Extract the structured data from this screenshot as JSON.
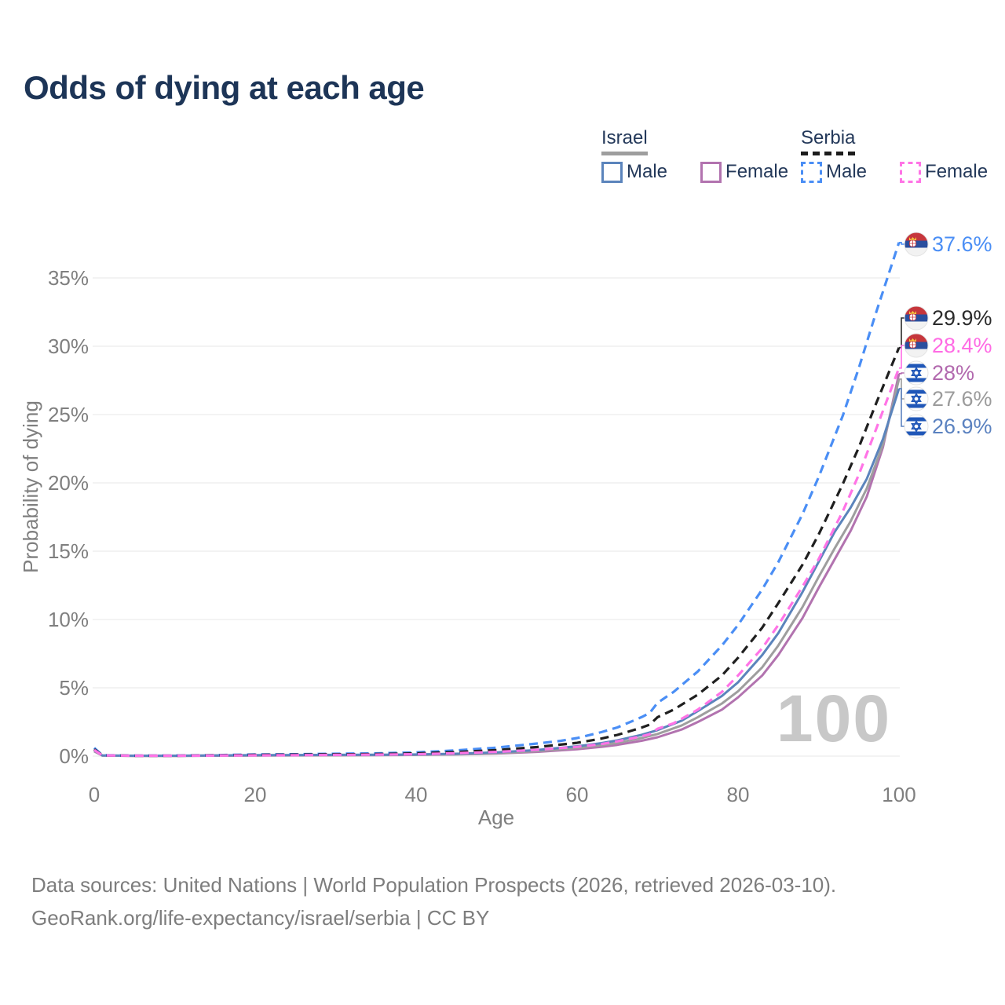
{
  "page": {
    "title": "Odds of dying at each age"
  },
  "legend": {
    "groups": [
      {
        "name": "Israel",
        "underline_style": "solid",
        "underline_color": "#9e9e9e",
        "items": [
          {
            "label": "Male",
            "color": "#5b84bc",
            "style": "solid"
          },
          {
            "label": "Female",
            "color": "#b273af",
            "style": "solid"
          }
        ]
      },
      {
        "name": "Serbia",
        "underline_style": "dashed",
        "underline_color": "#1c1c1c",
        "items": [
          {
            "label": "Male",
            "color": "#4a8ef5",
            "style": "dashed"
          },
          {
            "label": "Female",
            "color": "#ff74e6",
            "style": "dashed"
          }
        ]
      }
    ]
  },
  "footer": {
    "line1": "Data sources: United Nations | World Population Prospects (2026, retrieved 2026-03-10).",
    "line2": "GeoRank.org/life-expectancy/israel/serbia | CC BY"
  },
  "chart_data": {
    "type": "line",
    "title": "Odds of dying at each age",
    "xlabel": "Age",
    "ylabel": "Probability of dying",
    "xlim": [
      0,
      100
    ],
    "ylim_pct": [
      0,
      38
    ],
    "x_ticks": [
      0,
      20,
      40,
      60,
      80,
      100
    ],
    "x_tick_labels": [
      "0",
      "20",
      "40",
      "60",
      "80",
      "100"
    ],
    "y_ticks_pct": [
      0,
      5,
      10,
      15,
      20,
      25,
      30,
      35
    ],
    "y_tick_labels": [
      "0%",
      "5%",
      "10%",
      "15%",
      "20%",
      "25%",
      "30%",
      "35%"
    ],
    "grid": "horizontal",
    "legend_position": "top-right",
    "watermark": "100",
    "axis_text_color": "#7f7f7f",
    "grid_color": "#ececec",
    "watermark_color": "#c8c8c8",
    "series": [
      {
        "id": "israel-female",
        "name": "Israel Female",
        "country": "Israel",
        "sex": "Female",
        "style": "solid",
        "color": "#b273af",
        "points": [
          [
            0,
            0.35
          ],
          [
            1,
            0.04
          ],
          [
            5,
            0.02
          ],
          [
            10,
            0.02
          ],
          [
            15,
            0.03
          ],
          [
            20,
            0.04
          ],
          [
            25,
            0.05
          ],
          [
            30,
            0.06
          ],
          [
            35,
            0.07
          ],
          [
            40,
            0.09
          ],
          [
            45,
            0.12
          ],
          [
            50,
            0.19
          ],
          [
            55,
            0.31
          ],
          [
            60,
            0.5
          ],
          [
            63,
            0.68
          ],
          [
            65,
            0.82
          ],
          [
            68,
            1.12
          ],
          [
            70,
            1.38
          ],
          [
            73,
            1.95
          ],
          [
            75,
            2.5
          ],
          [
            78,
            3.4
          ],
          [
            80,
            4.3
          ],
          [
            83,
            5.9
          ],
          [
            85,
            7.4
          ],
          [
            88,
            10.1
          ],
          [
            90,
            12.3
          ],
          [
            92,
            14.4
          ],
          [
            94,
            16.5
          ],
          [
            96,
            19.0
          ],
          [
            98,
            22.6
          ],
          [
            100,
            28.0
          ]
        ]
      },
      {
        "id": "israel-total",
        "name": "Israel Both sexes",
        "country": "Israel",
        "sex": "Both",
        "style": "solid",
        "color": "#9e9e9e",
        "points": [
          [
            0,
            0.38
          ],
          [
            1,
            0.04
          ],
          [
            5,
            0.02
          ],
          [
            10,
            0.02
          ],
          [
            15,
            0.04
          ],
          [
            20,
            0.05
          ],
          [
            25,
            0.06
          ],
          [
            30,
            0.07
          ],
          [
            35,
            0.08
          ],
          [
            40,
            0.1
          ],
          [
            45,
            0.14
          ],
          [
            50,
            0.22
          ],
          [
            55,
            0.37
          ],
          [
            60,
            0.6
          ],
          [
            63,
            0.8
          ],
          [
            65,
            0.97
          ],
          [
            68,
            1.32
          ],
          [
            70,
            1.62
          ],
          [
            73,
            2.25
          ],
          [
            75,
            2.85
          ],
          [
            78,
            3.85
          ],
          [
            80,
            4.75
          ],
          [
            83,
            6.5
          ],
          [
            85,
            8.1
          ],
          [
            88,
            10.9
          ],
          [
            90,
            13.1
          ],
          [
            92,
            15.2
          ],
          [
            94,
            17.2
          ],
          [
            96,
            19.6
          ],
          [
            98,
            22.8
          ],
          [
            100,
            27.6
          ]
        ]
      },
      {
        "id": "israel-male",
        "name": "Israel Male",
        "country": "Israel",
        "sex": "Male",
        "style": "solid",
        "color": "#5b84bc",
        "points": [
          [
            0,
            0.42
          ],
          [
            1,
            0.05
          ],
          [
            5,
            0.03
          ],
          [
            10,
            0.03
          ],
          [
            15,
            0.05
          ],
          [
            20,
            0.07
          ],
          [
            25,
            0.08
          ],
          [
            30,
            0.09
          ],
          [
            35,
            0.1
          ],
          [
            40,
            0.12
          ],
          [
            45,
            0.17
          ],
          [
            50,
            0.27
          ],
          [
            55,
            0.44
          ],
          [
            60,
            0.72
          ],
          [
            63,
            0.95
          ],
          [
            65,
            1.15
          ],
          [
            68,
            1.55
          ],
          [
            70,
            1.9
          ],
          [
            73,
            2.6
          ],
          [
            75,
            3.3
          ],
          [
            78,
            4.4
          ],
          [
            80,
            5.4
          ],
          [
            83,
            7.4
          ],
          [
            85,
            9.0
          ],
          [
            88,
            12.0
          ],
          [
            90,
            14.2
          ],
          [
            92,
            16.4
          ],
          [
            94,
            18.2
          ],
          [
            96,
            20.3
          ],
          [
            98,
            23.2
          ],
          [
            100,
            26.9
          ]
        ]
      },
      {
        "id": "serbia-male",
        "name": "Serbia Male",
        "country": "Serbia",
        "sex": "Male",
        "style": "dashed",
        "color": "#4a8ef5",
        "points": [
          [
            0,
            0.6
          ],
          [
            1,
            0.07
          ],
          [
            5,
            0.04
          ],
          [
            10,
            0.04
          ],
          [
            15,
            0.07
          ],
          [
            20,
            0.12
          ],
          [
            25,
            0.14
          ],
          [
            30,
            0.17
          ],
          [
            35,
            0.2
          ],
          [
            40,
            0.27
          ],
          [
            45,
            0.42
          ],
          [
            50,
            0.62
          ],
          [
            55,
            0.92
          ],
          [
            58,
            1.12
          ],
          [
            60,
            1.32
          ],
          [
            63,
            1.75
          ],
          [
            65,
            2.1
          ],
          [
            67,
            2.6
          ],
          [
            68,
            2.85
          ],
          [
            69,
            3.15
          ],
          [
            70,
            3.9
          ],
          [
            72,
            4.7
          ],
          [
            75,
            6.2
          ],
          [
            78,
            8.1
          ],
          [
            80,
            9.6
          ],
          [
            83,
            12.2
          ],
          [
            85,
            14.2
          ],
          [
            88,
            17.7
          ],
          [
            90,
            20.4
          ],
          [
            93,
            24.9
          ],
          [
            95,
            28.4
          ],
          [
            97,
            32.2
          ],
          [
            100,
            37.6
          ]
        ]
      },
      {
        "id": "serbia-total",
        "name": "Serbia Both sexes",
        "country": "Serbia",
        "sex": "Both",
        "style": "dashed",
        "color": "#1f1f1f",
        "points": [
          [
            0,
            0.5
          ],
          [
            1,
            0.06
          ],
          [
            5,
            0.03
          ],
          [
            10,
            0.03
          ],
          [
            15,
            0.06
          ],
          [
            20,
            0.09
          ],
          [
            25,
            0.11
          ],
          [
            30,
            0.13
          ],
          [
            35,
            0.15
          ],
          [
            40,
            0.2
          ],
          [
            45,
            0.3
          ],
          [
            50,
            0.44
          ],
          [
            55,
            0.66
          ],
          [
            60,
            0.97
          ],
          [
            63,
            1.28
          ],
          [
            65,
            1.55
          ],
          [
            67,
            1.9
          ],
          [
            68,
            2.08
          ],
          [
            69,
            2.3
          ],
          [
            70,
            2.85
          ],
          [
            72,
            3.4
          ],
          [
            75,
            4.5
          ],
          [
            78,
            5.9
          ],
          [
            80,
            7.2
          ],
          [
            83,
            9.4
          ],
          [
            85,
            11.2
          ],
          [
            88,
            14.0
          ],
          [
            90,
            16.2
          ],
          [
            93,
            19.9
          ],
          [
            95,
            22.6
          ],
          [
            97,
            25.6
          ],
          [
            100,
            29.9
          ]
        ]
      },
      {
        "id": "serbia-female",
        "name": "Serbia Female",
        "country": "Serbia",
        "sex": "Female",
        "style": "dashed",
        "color": "#ff74e6",
        "points": [
          [
            0,
            0.45
          ],
          [
            1,
            0.05
          ],
          [
            5,
            0.03
          ],
          [
            10,
            0.03
          ],
          [
            15,
            0.04
          ],
          [
            20,
            0.06
          ],
          [
            25,
            0.07
          ],
          [
            30,
            0.09
          ],
          [
            35,
            0.11
          ],
          [
            40,
            0.14
          ],
          [
            45,
            0.21
          ],
          [
            50,
            0.31
          ],
          [
            55,
            0.46
          ],
          [
            60,
            0.68
          ],
          [
            63,
            0.88
          ],
          [
            65,
            1.08
          ],
          [
            67,
            1.32
          ],
          [
            68,
            1.45
          ],
          [
            69,
            1.6
          ],
          [
            70,
            2.0
          ],
          [
            72,
            2.4
          ],
          [
            75,
            3.4
          ],
          [
            78,
            4.7
          ],
          [
            80,
            5.9
          ],
          [
            83,
            7.9
          ],
          [
            85,
            9.6
          ],
          [
            88,
            12.4
          ],
          [
            90,
            14.4
          ],
          [
            93,
            17.9
          ],
          [
            95,
            20.6
          ],
          [
            97,
            23.7
          ],
          [
            100,
            28.4
          ]
        ]
      }
    ],
    "end_labels": [
      {
        "series": "serbia-male",
        "text": "37.6%",
        "value_pct": 37.6,
        "flag": "serbia",
        "color": "#4a8ef5"
      },
      {
        "series": "serbia-total",
        "text": "29.9%",
        "value_pct": 29.9,
        "flag": "serbia",
        "color": "#2b2b2b"
      },
      {
        "series": "serbia-female",
        "text": "28.4%",
        "value_pct": 28.4,
        "flag": "serbia",
        "color": "#ff6be4"
      },
      {
        "series": "israel-female",
        "text": "28%",
        "value_pct": 28.0,
        "flag": "israel",
        "color": "#b269ae"
      },
      {
        "series": "israel-total",
        "text": "27.6%",
        "value_pct": 27.6,
        "flag": "israel",
        "color": "#9b9b9b"
      },
      {
        "series": "israel-male",
        "text": "26.9%",
        "value_pct": 26.9,
        "flag": "israel",
        "color": "#5b82c0"
      }
    ]
  }
}
